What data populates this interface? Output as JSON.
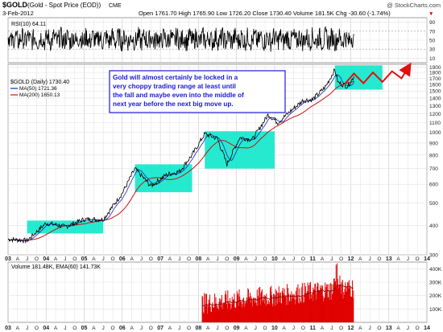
{
  "header": {
    "symbol": "$GOLD",
    "name": "(Gold - Spot Price (EOD))",
    "exchange": "CME",
    "copyright": "@ StockCharts.com",
    "date": "3-Feb-2012",
    "ohlc": "Open 1761.70  High 1765.90  Low 1726.20  Close 1730.40  Volume 181.5K  Chg -30.60 (-1.74%)",
    "chg_arrow": "▼"
  },
  "rsi_panel": {
    "legend": "RSI(10) 64.11",
    "yticks": [
      "90",
      "70",
      "50",
      "30",
      "10"
    ]
  },
  "price_panel": {
    "legend_symbol": "$GOLD (Daily) 1730.40",
    "legend_ma50": "MA(50) 1721.36",
    "legend_ma200": "MA(200) 1650.13",
    "yticks": [
      "1900",
      "1800",
      "1700",
      "1600",
      "1500",
      "1400",
      "1300",
      "1200",
      "1100",
      "1000",
      "900",
      "800",
      "700",
      "600",
      "500",
      "400",
      "300"
    ]
  },
  "annotation": {
    "text": [
      "Gold will almost certainly be locked in a",
      "very choppy trading range at least until",
      "the fall and maybe even into the middle of",
      "next year before the next big move up."
    ]
  },
  "volume_panel": {
    "legend": "Volume 181.48K, EMA(60) 141.73K",
    "yticks": [
      "400K",
      "300K",
      "200K",
      "100K"
    ]
  },
  "xaxis": {
    "labels": [
      "03",
      "A",
      "J",
      "O",
      "04",
      "A",
      "J",
      "O",
      "05",
      "A",
      "J",
      "O",
      "06",
      "A",
      "J",
      "O",
      "07",
      "A",
      "J",
      "O",
      "08",
      "A",
      "J",
      "O",
      "09",
      "A",
      "J",
      "O",
      "10",
      "A",
      "J",
      "O",
      "11",
      "A",
      "J",
      "O",
      "12",
      "A",
      "J",
      "O",
      "13",
      "A",
      "J",
      "O",
      "14"
    ]
  },
  "colors": {
    "price": "#000000",
    "ma50": "#1f1fbf",
    "ma200": "#cc1010",
    "box": "#00e6c8",
    "annotation_text": "#1a1adb",
    "arrow": "#e01010",
    "volume": "#e00000",
    "rsi": "#000000"
  },
  "chart_data": {
    "type": "line",
    "title": "$GOLD (Gold - Spot Price (EOD))",
    "x": [
      "2003-01",
      "2003-07",
      "2004-01",
      "2004-07",
      "2005-01",
      "2005-07",
      "2006-01",
      "2006-05",
      "2006-10",
      "2007-03",
      "2007-07",
      "2007-11",
      "2008-03",
      "2008-07",
      "2008-10",
      "2009-02",
      "2009-06",
      "2009-11",
      "2010-02",
      "2010-06",
      "2010-10",
      "2011-01",
      "2011-05",
      "2011-08",
      "2011-09",
      "2011-12",
      "2012-02"
    ],
    "series": [
      {
        "name": "$GOLD (Daily)",
        "values": [
          350,
          345,
          410,
          395,
          425,
          425,
          550,
          700,
          590,
          660,
          680,
          800,
          985,
          940,
          730,
          950,
          930,
          1190,
          1100,
          1230,
          1370,
          1380,
          1560,
          1850,
          1630,
          1570,
          1730
        ]
      }
    ],
    "ylim": [
      300,
      1950
    ],
    "xlim": [
      "2003-01",
      "2014-01"
    ],
    "rsi_ylim": [
      0,
      100
    ],
    "volume_ylim": [
      0,
      450000
    ],
    "annotation_boxes": [
      {
        "x": [
          "2003-07",
          "2005-07"
        ],
        "y": [
          370,
          420
        ]
      },
      {
        "x": [
          "2006-05",
          "2007-11"
        ],
        "y": [
          555,
          730
        ]
      },
      {
        "x": [
          "2008-03",
          "2010-01"
        ],
        "y": [
          700,
          1010
        ]
      },
      {
        "x": [
          "2011-08",
          "2012-11"
        ],
        "y": [
          1520,
          1930
        ]
      }
    ],
    "projection": {
      "x": [
        "2011-11",
        "2012-02",
        "2012-05",
        "2012-08",
        "2012-11",
        "2013-02",
        "2013-05",
        "2013-07"
      ],
      "y": [
        1600,
        1780,
        1620,
        1800,
        1640,
        1820,
        1700,
        1880
      ]
    },
    "grid": true,
    "legend": "top-left"
  }
}
